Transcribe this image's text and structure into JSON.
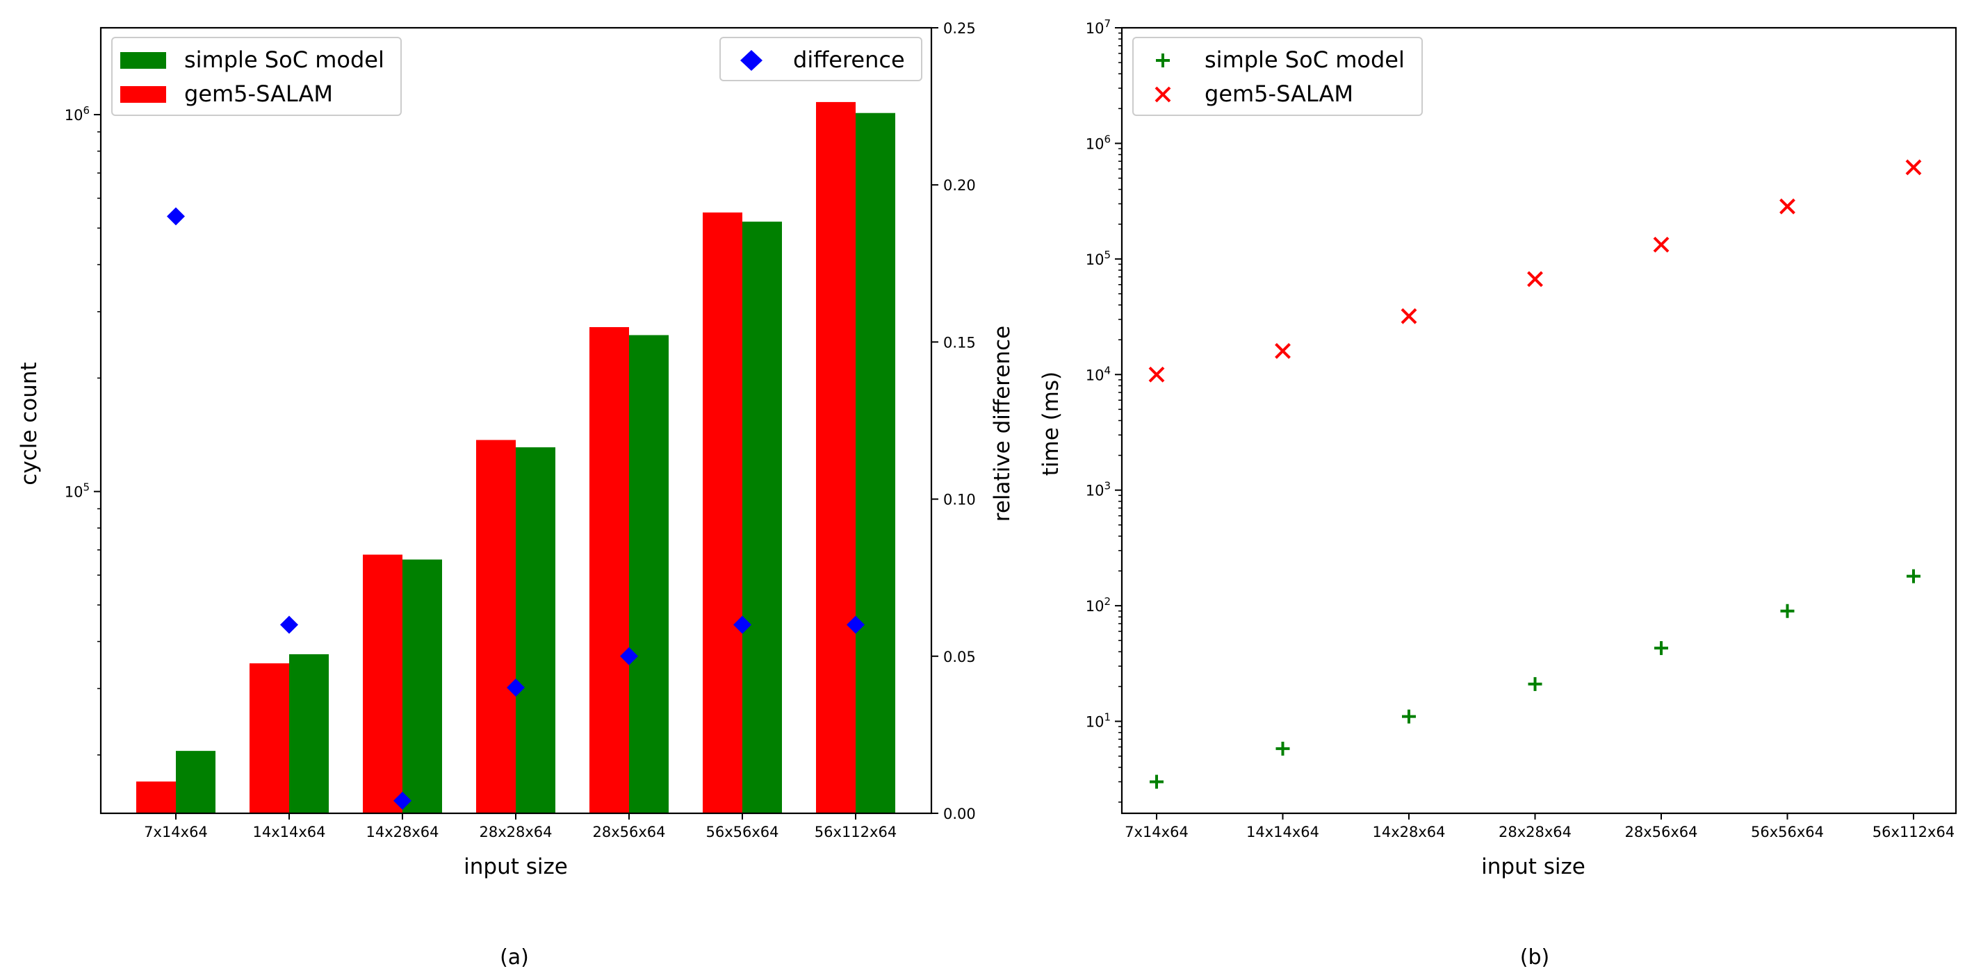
{
  "chart_data": [
    {
      "type": "bar",
      "caption": "(a)",
      "categories": [
        "7x14x64",
        "14x14x64",
        "14x28x64",
        "28x28x64",
        "28x56x64",
        "56x56x64",
        "56x112x64"
      ],
      "xlabel": "input size",
      "ylabel": "cycle count",
      "y2label": "relative difference",
      "yscale": "log",
      "ylim": [
        14000,
        1700000
      ],
      "y_ticks": [
        {
          "value": 100000,
          "base": "10",
          "exp": "5"
        },
        {
          "value": 1000000,
          "base": "10",
          "exp": "6"
        }
      ],
      "y2lim": [
        0.0,
        0.25
      ],
      "y2_ticks": [
        "0.00",
        "0.05",
        "0.10",
        "0.15",
        "0.20",
        "0.25"
      ],
      "series": [
        {
          "name": "gem5-SALAM",
          "color": "#ff0000",
          "values": [
            17000,
            35000,
            68000,
            137000,
            273000,
            550000,
            1080000
          ]
        },
        {
          "name": "simple SoC model",
          "color": "#008000",
          "values": [
            20500,
            37000,
            66000,
            131000,
            260000,
            520000,
            1010000
          ]
        },
        {
          "name": "difference",
          "color": "#0000ff",
          "marker": "diamond",
          "axis": "right",
          "values": [
            0.19,
            0.06,
            0.004,
            0.04,
            0.05,
            0.06,
            0.06
          ]
        }
      ],
      "legends": [
        {
          "position": "top-left",
          "entries": [
            "simple SoC model",
            "gem5-SALAM"
          ]
        },
        {
          "position": "top-right",
          "entries": [
            "difference"
          ]
        }
      ]
    },
    {
      "type": "scatter",
      "caption": "(b)",
      "categories": [
        "7x14x64",
        "14x14x64",
        "14x28x64",
        "28x28x64",
        "28x56x64",
        "56x56x64",
        "56x112x64"
      ],
      "xlabel": "input size",
      "ylabel": "time (ms)",
      "yscale": "log",
      "ylim": [
        1.6,
        10000000
      ],
      "y_ticks": [
        {
          "value": 10,
          "base": "10",
          "exp": "1"
        },
        {
          "value": 100,
          "base": "10",
          "exp": "2"
        },
        {
          "value": 1000,
          "base": "10",
          "exp": "3"
        },
        {
          "value": 10000,
          "base": "10",
          "exp": "4"
        },
        {
          "value": 100000,
          "base": "10",
          "exp": "5"
        },
        {
          "value": 1000000,
          "base": "10",
          "exp": "6"
        },
        {
          "value": 10000000,
          "base": "10",
          "exp": "7"
        }
      ],
      "series": [
        {
          "name": "simple SoC model",
          "color": "#008000",
          "marker": "plus",
          "values": [
            3.0,
            5.8,
            11.0,
            21.0,
            43.0,
            90.0,
            180.0
          ]
        },
        {
          "name": "gem5-SALAM",
          "color": "#ff0000",
          "marker": "x",
          "values": [
            10000,
            16000,
            32000,
            67000,
            133000,
            285000,
            620000
          ]
        }
      ],
      "legends": [
        {
          "position": "top-left",
          "entries": [
            "simple SoC model",
            "gem5-SALAM"
          ]
        }
      ]
    }
  ]
}
